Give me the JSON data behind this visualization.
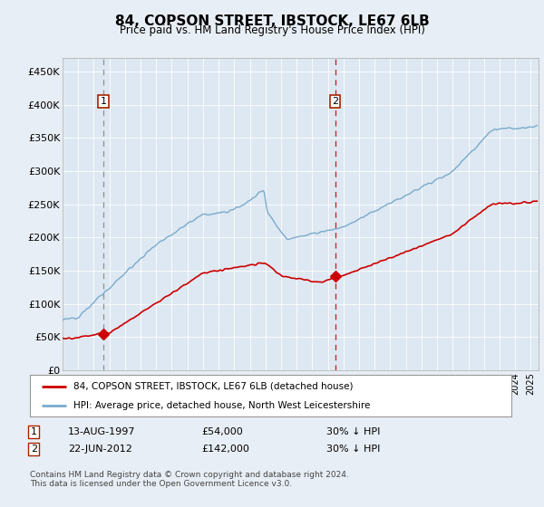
{
  "title": "84, COPSON STREET, IBSTOCK, LE67 6LB",
  "subtitle": "Price paid vs. HM Land Registry's House Price Index (HPI)",
  "background_color": "#e8eef5",
  "plot_bg_color": "#dde8f2",
  "ylabel_ticks": [
    "£0",
    "£50K",
    "£100K",
    "£150K",
    "£200K",
    "£250K",
    "£300K",
    "£350K",
    "£400K",
    "£450K"
  ],
  "ytick_values": [
    0,
    50000,
    100000,
    150000,
    200000,
    250000,
    300000,
    350000,
    400000,
    450000
  ],
  "ylim": [
    0,
    470000
  ],
  "xlim_start": 1995.0,
  "xlim_end": 2025.5,
  "legend_line1": "84, COPSON STREET, IBSTOCK, LE67 6LB (detached house)",
  "legend_line2": "HPI: Average price, detached house, North West Leicestershire",
  "footer": "Contains HM Land Registry data © Crown copyright and database right 2024.\nThis data is licensed under the Open Government Licence v3.0.",
  "sale1_date": "13-AUG-1997",
  "sale1_price": "£54,000",
  "sale1_hpi": "30% ↓ HPI",
  "sale1_x": 1997.62,
  "sale1_y": 54000,
  "sale2_date": "22-JUN-2012",
  "sale2_price": "£142,000",
  "sale2_hpi": "30% ↓ HPI",
  "sale2_x": 2012.47,
  "sale2_y": 142000,
  "red_line_color": "#cc0000",
  "blue_line_color": "#7aaacc",
  "sale1_vline_color": "#888888",
  "sale2_vline_color": "#cc0000",
  "marker_color": "#cc0000",
  "box_edge_color": "#aa2200"
}
